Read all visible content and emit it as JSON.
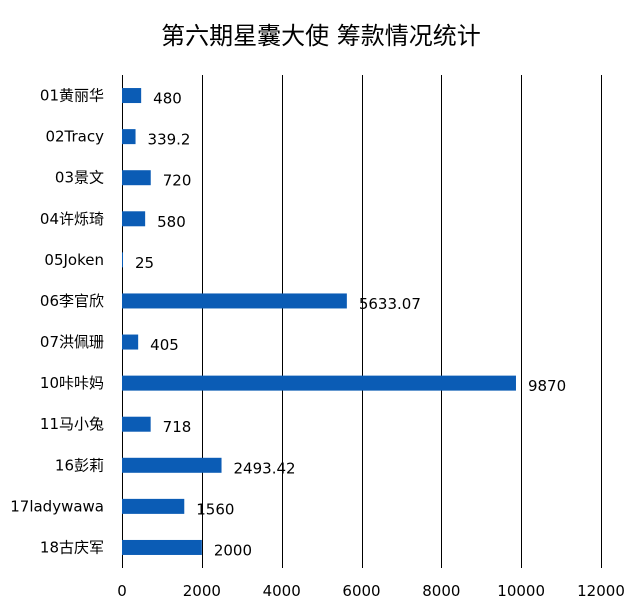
{
  "chart_data": {
    "type": "bar",
    "orientation": "horizontal",
    "title": "第六期星囊大使 筹款情况统计",
    "xlabel": "",
    "ylabel": "",
    "categories": [
      "01黄丽华",
      "02Tracy",
      "03景文",
      "04许烁琦",
      "05Joken",
      "06李官欣",
      "07洪佩珊",
      "10咔咔妈",
      "11马小兔",
      "16彭莉",
      "17ladywawa",
      "18古庆军"
    ],
    "values": [
      480,
      339.2,
      720,
      580,
      25,
      5633.07,
      405,
      9870,
      718,
      2493.42,
      1560,
      2000
    ],
    "value_labels": [
      "480",
      "339.2",
      "720",
      "580",
      "25",
      "5633.07",
      "405",
      "9870",
      "718",
      "2493.42",
      "1560",
      "2000"
    ],
    "xlim": [
      0,
      12000
    ],
    "xticks": [
      0,
      2000,
      4000,
      6000,
      8000,
      10000,
      12000
    ],
    "xtick_labels": [
      "0",
      "2000",
      "4000",
      "6000",
      "8000",
      "10000",
      "12000"
    ],
    "grid": "vertical",
    "legend": "none",
    "bar_color": "#0b5cb5"
  }
}
